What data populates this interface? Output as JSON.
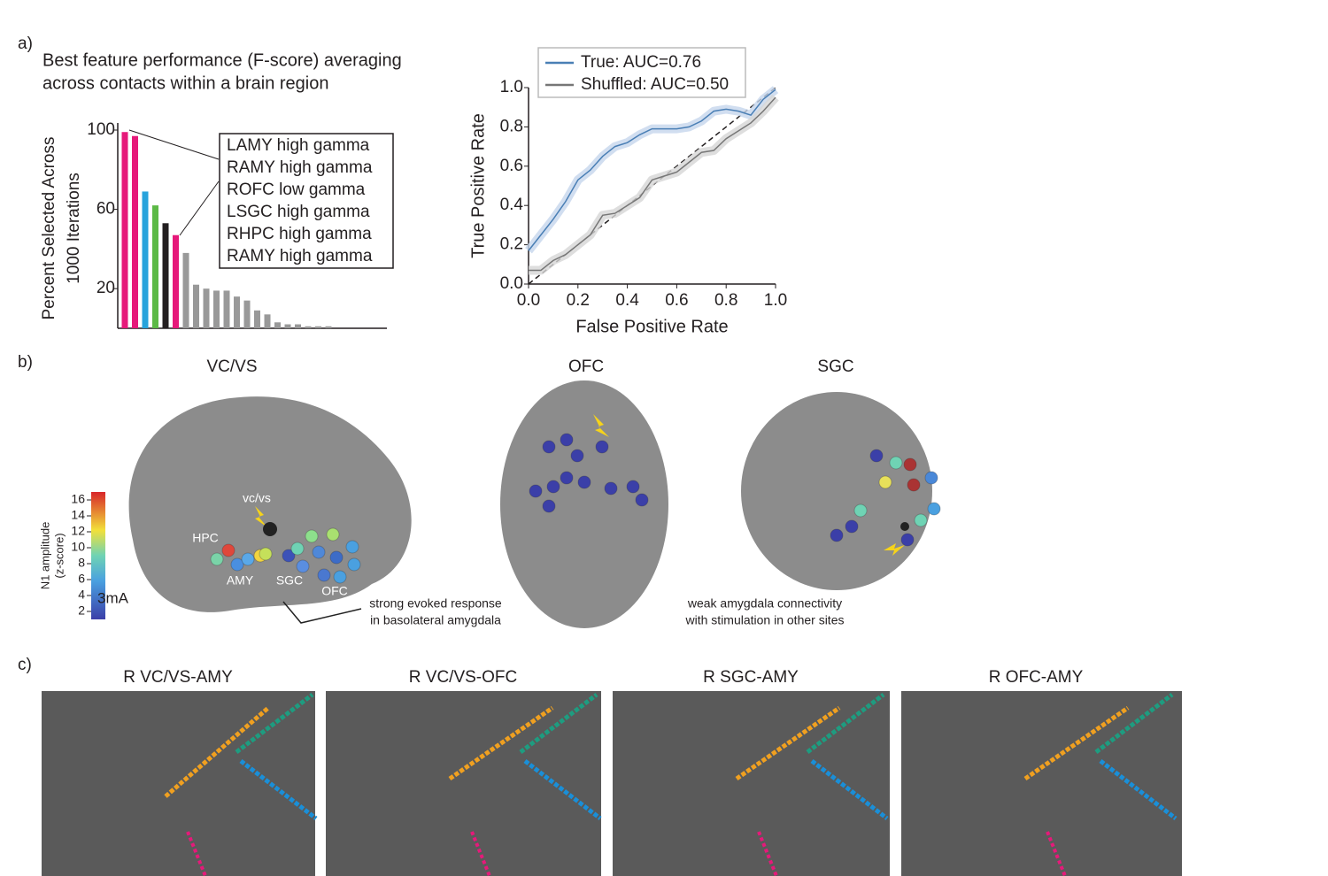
{
  "panel_labels": [
    "a)",
    "b)",
    "c)"
  ],
  "chart_data": [
    {
      "type": "bar",
      "title": [
        "Best feature performance (F-score) averaging",
        "across contacts within a brain region"
      ],
      "ylabel": [
        "Percent Selected Across",
        "1000 Iterations"
      ],
      "categories": [
        null,
        null,
        null,
        null,
        null,
        null,
        null,
        null,
        null,
        null,
        null,
        null,
        null,
        null,
        null,
        null,
        null,
        null,
        null,
        null,
        null
      ],
      "values": [
        99,
        97,
        69,
        62,
        53,
        47,
        38,
        22,
        20,
        19,
        19,
        16,
        14,
        9,
        7,
        3,
        2,
        2,
        1,
        1,
        1
      ],
      "colors": [
        "#e6197a",
        "#e6197a",
        "#27a3dc",
        "#5cb946",
        "#231f20",
        "#e6197a",
        "#999999",
        "#999999",
        "#999999",
        "#999999",
        "#999999",
        "#999999",
        "#999999",
        "#999999",
        "#999999",
        "#999999",
        "#999999",
        "#999999",
        "#999999",
        "#999999",
        "#999999"
      ],
      "ylim": [
        0,
        100
      ],
      "yticks": [
        20,
        60,
        100
      ],
      "annotation": [
        "LAMY high gamma",
        "RAMY high gamma",
        "ROFC low gamma",
        "LSGC high gamma",
        "RHPC high gamma",
        "RAMY high gamma"
      ]
    },
    {
      "type": "line",
      "xlabel": "False Positive Rate",
      "ylabel": "True Positive Rate",
      "x": [
        0,
        0.05,
        0.1,
        0.15,
        0.2,
        0.25,
        0.3,
        0.35,
        0.4,
        0.45,
        0.5,
        0.55,
        0.6,
        0.65,
        0.7,
        0.75,
        0.8,
        0.85,
        0.9,
        0.95,
        1.0
      ],
      "series": [
        {
          "name": "True: AUC=0.76",
          "color": "#4a7fb5",
          "band_color": "#c5d6ec",
          "values": [
            0.17,
            0.25,
            0.33,
            0.42,
            0.53,
            0.58,
            0.65,
            0.7,
            0.72,
            0.76,
            0.79,
            0.79,
            0.79,
            0.8,
            0.83,
            0.88,
            0.89,
            0.88,
            0.86,
            0.94,
            0.99
          ]
        },
        {
          "name": "Shuffled: AUC=0.50",
          "color": "#777777",
          "band_color": "#d6d6d6",
          "values": [
            0.07,
            0.07,
            0.12,
            0.15,
            0.2,
            0.25,
            0.35,
            0.36,
            0.4,
            0.44,
            0.53,
            0.55,
            0.57,
            0.62,
            0.67,
            0.68,
            0.74,
            0.78,
            0.82,
            0.88,
            0.95
          ]
        }
      ],
      "xlim": [
        0,
        1
      ],
      "ylim": [
        0,
        1
      ],
      "xticks": [
        {
          "value": 0,
          "label": "0.0"
        },
        0.2,
        0.4,
        0.6,
        0.8,
        {
          "value": 1,
          "label": "1.0"
        }
      ],
      "yticks": [
        {
          "value": 0,
          "label": "0.0"
        },
        0.2,
        0.4,
        0.6,
        0.8,
        {
          "value": 1,
          "label": "1.0"
        }
      ],
      "chance_line": true
    }
  ],
  "panel_b": {
    "titles": [
      "VC/VS",
      "OFC",
      "SGC"
    ],
    "colorbar": {
      "label": [
        "N1 amplitude",
        "(z-score)"
      ],
      "lim": [
        1,
        17
      ],
      "ticks": [
        2,
        4,
        6,
        8,
        10,
        12,
        14,
        16
      ]
    },
    "brain_labels": [
      "vc/vs",
      "HPC",
      "AMY",
      "SGC",
      "OFC"
    ],
    "current": "3mA",
    "annotations": [
      [
        "strong evoked response",
        "in basolateral amygdala"
      ],
      [
        "weak amygdala connectivity",
        "with stimulation in other sites"
      ]
    ]
  },
  "panel_c": {
    "titles": [
      "R VC/VS-AMY",
      "R VC/VS-OFC",
      "R SGC-AMY",
      "R OFC-AMY"
    ]
  }
}
